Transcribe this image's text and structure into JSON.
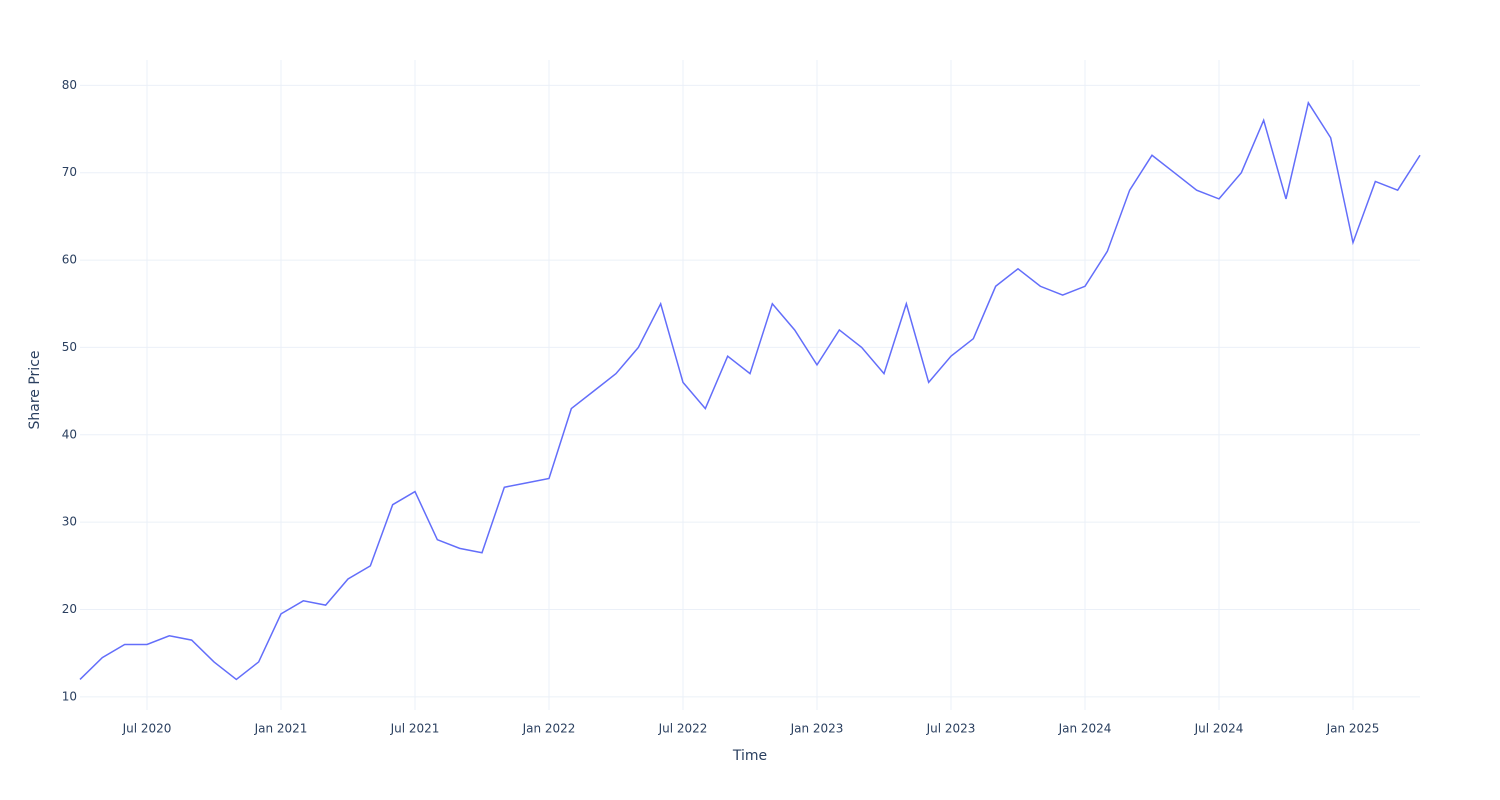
{
  "chart_data": {
    "type": "line",
    "x_title": "Time",
    "y_title": "Share Price",
    "x": [
      "2020-04",
      "2020-05",
      "2020-06",
      "2020-07",
      "2020-08",
      "2020-09",
      "2020-10",
      "2020-11",
      "2020-12",
      "2021-01",
      "2021-02",
      "2021-03",
      "2021-04",
      "2021-05",
      "2021-06",
      "2021-07",
      "2021-08",
      "2021-09",
      "2021-10",
      "2021-11",
      "2021-12",
      "2022-01",
      "2022-02",
      "2022-03",
      "2022-04",
      "2022-05",
      "2022-06",
      "2022-07",
      "2022-08",
      "2022-09",
      "2022-10",
      "2022-11",
      "2022-12",
      "2023-01",
      "2023-02",
      "2023-03",
      "2023-04",
      "2023-05",
      "2023-06",
      "2023-07",
      "2023-08",
      "2023-09",
      "2023-10",
      "2023-11",
      "2023-12",
      "2024-01",
      "2024-02",
      "2024-03",
      "2024-04",
      "2024-05",
      "2024-06",
      "2024-07",
      "2024-08",
      "2024-09",
      "2024-10",
      "2024-11",
      "2024-12",
      "2025-01",
      "2025-02",
      "2025-03",
      "2025-04"
    ],
    "series": [
      {
        "name": "Share Price",
        "color": "#636efa",
        "values": [
          12,
          14.5,
          16,
          16,
          17,
          16.5,
          14,
          12,
          14,
          19.5,
          21,
          20.5,
          23.5,
          25,
          32,
          33.5,
          28,
          27,
          26.5,
          34,
          34.5,
          35,
          43,
          45,
          47,
          50,
          55,
          46,
          43,
          49,
          47,
          55,
          52,
          48,
          52,
          50,
          47,
          55,
          46,
          49,
          51,
          57,
          59,
          57,
          56,
          57,
          61,
          68,
          72,
          70,
          68,
          67,
          70,
          76,
          67,
          78,
          74,
          62,
          69,
          68,
          72
        ]
      }
    ],
    "xlim": [
      "2020-04",
      "2025-04"
    ],
    "xticks": [
      {
        "value": "2020-07",
        "label": "Jul 2020"
      },
      {
        "value": "2021-01",
        "label": "Jan 2021"
      },
      {
        "value": "2021-07",
        "label": "Jul 2021"
      },
      {
        "value": "2022-01",
        "label": "Jan 2022"
      },
      {
        "value": "2022-07",
        "label": "Jul 2022"
      },
      {
        "value": "2023-01",
        "label": "Jan 2023"
      },
      {
        "value": "2023-07",
        "label": "Jul 2023"
      },
      {
        "value": "2024-01",
        "label": "Jan 2024"
      },
      {
        "value": "2024-07",
        "label": "Jul 2024"
      },
      {
        "value": "2025-01",
        "label": "Jan 2025"
      }
    ],
    "ylim": [
      8.5,
      82.9
    ],
    "yticks": [
      10,
      20,
      30,
      40,
      50,
      60,
      70,
      80
    ],
    "grid": true
  }
}
